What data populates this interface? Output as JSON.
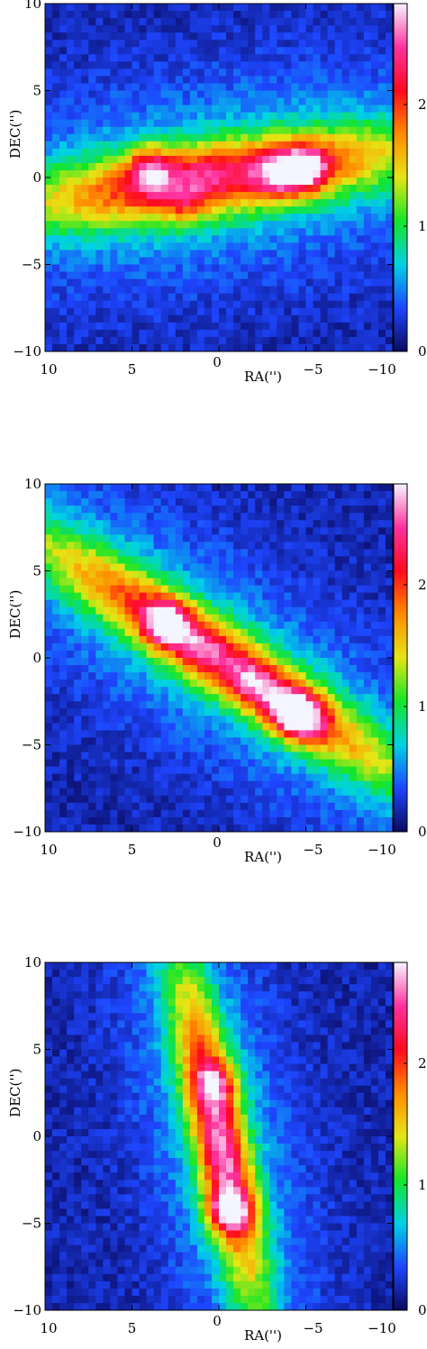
{
  "chart_data": [
    {
      "type": "heatmap",
      "title": "",
      "xlabel": "RA('')",
      "ylabel": "DEC('')",
      "xlim": [
        10,
        -10
      ],
      "ylim": [
        -10,
        10
      ],
      "xticks": [
        "10",
        "5",
        "0",
        "−5",
        "−10"
      ],
      "yticks": [
        "10",
        "5",
        "0",
        "−5",
        "−10"
      ],
      "colorbar": {
        "ticks": [
          "2",
          "1",
          "0"
        ],
        "colors": [
          "#0a0a60",
          "#1e46ff",
          "#00d2e6",
          "#14e628",
          "#e6e614",
          "#ff8c00",
          "#ff0a1e",
          "#ff32a0",
          "#f5f5ff"
        ]
      },
      "features": {
        "disk_pa_deg": -8,
        "disk_length": 13,
        "disk_width": 2.2,
        "peaks": [
          [
            4,
            0.5,
            2.2
          ],
          [
            -5,
            0.5,
            2.4
          ],
          [
            -3.5,
            0.2,
            2.1
          ],
          [
            2,
            -1.5,
            1.7
          ],
          [
            1,
            0.6,
            1.4
          ]
        ]
      }
    },
    {
      "type": "heatmap",
      "title": "",
      "xlabel": "RA('')",
      "ylabel": "DEC('')",
      "xlim": [
        10,
        -10
      ],
      "ylim": [
        -10,
        10
      ],
      "xticks": [
        "10",
        "5",
        "0",
        "−5",
        "−10"
      ],
      "yticks": [
        "10",
        "5",
        "0",
        "−5",
        "−10"
      ],
      "colorbar": {
        "ticks": [
          "2",
          "1",
          "0"
        ],
        "colors": [
          "#0a0a60",
          "#1e46ff",
          "#00d2e6",
          "#14e628",
          "#e6e614",
          "#ff8c00",
          "#ff0a1e",
          "#ff32a0",
          "#f5f5ff"
        ]
      },
      "features": {
        "disk_pa_deg": 33,
        "disk_length": 14,
        "disk_width": 2.0,
        "peaks": [
          [
            3,
            2,
            2.5
          ],
          [
            -4,
            -3,
            2.4
          ],
          [
            -5,
            -3.6,
            2.2
          ],
          [
            1,
            0.5,
            1.6
          ],
          [
            -2,
            -1.5,
            1.8
          ]
        ]
      }
    },
    {
      "type": "heatmap",
      "title": "",
      "xlabel": "RA('')",
      "ylabel": "DEC('')",
      "xlim": [
        10,
        -10
      ],
      "ylim": [
        -10,
        10
      ],
      "xticks": [
        "10",
        "5",
        "0",
        "−5",
        "−10"
      ],
      "yticks": [
        "10",
        "5",
        "0",
        "−5",
        "−10"
      ],
      "colorbar": {
        "ticks": [
          "2",
          "1",
          "0"
        ],
        "colors": [
          "#0a0a60",
          "#1e46ff",
          "#00d2e6",
          "#14e628",
          "#e6e614",
          "#ff8c00",
          "#ff0a1e",
          "#ff32a0",
          "#f5f5ff"
        ]
      },
      "features": {
        "disk_pa_deg": 78,
        "disk_length": 11,
        "disk_width": 1.6,
        "peaks": [
          [
            -0.6,
            -4.2,
            2.6
          ],
          [
            0.2,
            3,
            2.1
          ],
          [
            0,
            0.5,
            1.5
          ],
          [
            -0.3,
            -1.5,
            1.6
          ]
        ]
      }
    }
  ]
}
